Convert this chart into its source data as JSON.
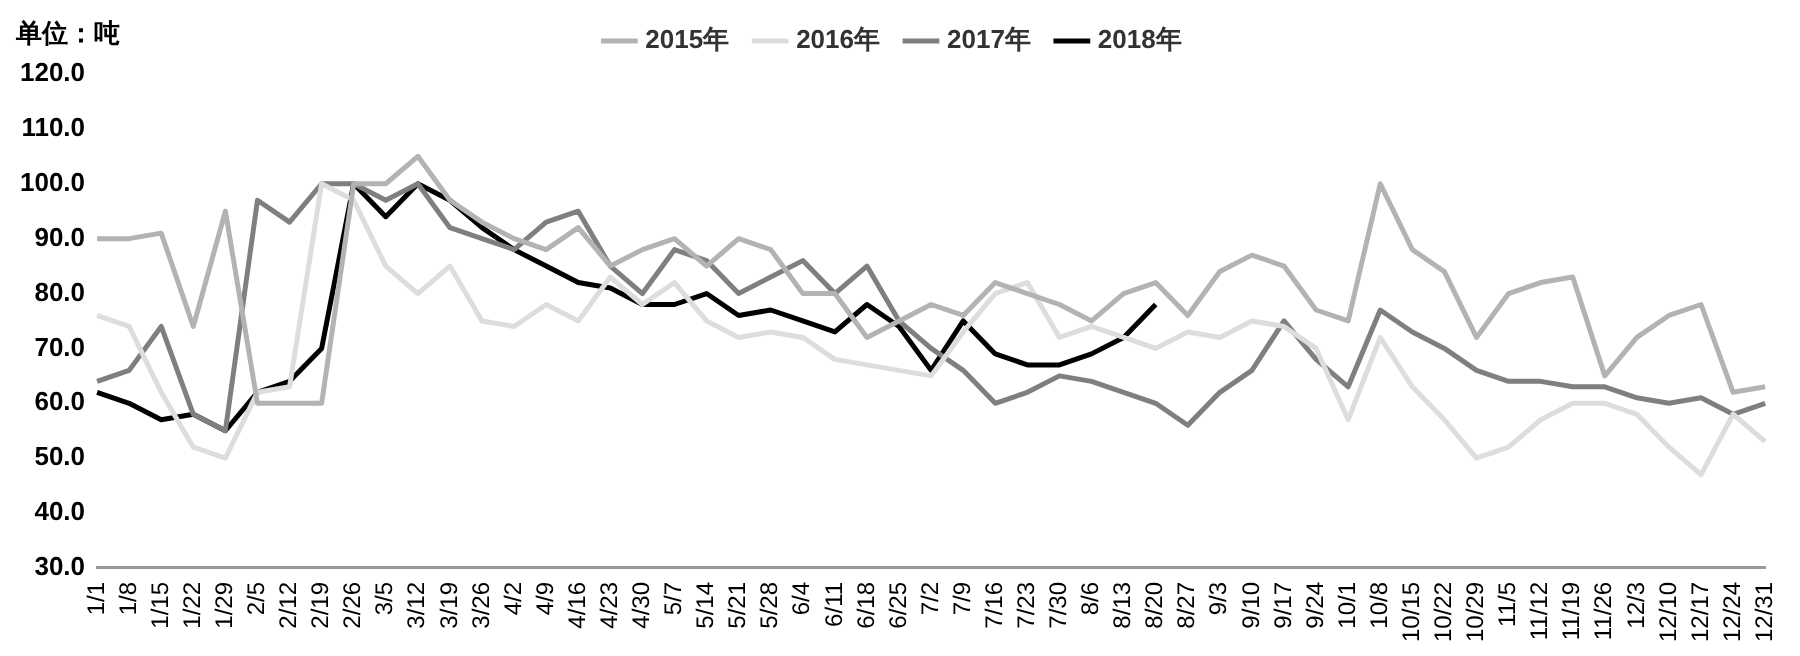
{
  "chart_data": {
    "type": "line",
    "ylabel": "单位：吨",
    "legend": "top",
    "marker": "none",
    "line_style": "solid",
    "grid": false,
    "categories": [
      "1/1",
      "1/8",
      "1/15",
      "1/22",
      "1/29",
      "2/5",
      "2/12",
      "2/19",
      "2/26",
      "3/5",
      "3/12",
      "3/19",
      "3/26",
      "4/2",
      "4/9",
      "4/16",
      "4/23",
      "4/30",
      "5/7",
      "5/14",
      "5/21",
      "5/28",
      "6/4",
      "6/11",
      "6/18",
      "6/25",
      "7/2",
      "7/9",
      "7/16",
      "7/23",
      "7/30",
      "8/6",
      "8/13",
      "8/20",
      "8/27",
      "9/3",
      "9/10",
      "9/17",
      "9/24",
      "10/1",
      "10/8",
      "10/15",
      "10/22",
      "10/29",
      "11/5",
      "11/12",
      "11/19",
      "11/26",
      "12/3",
      "12/10",
      "12/17",
      "12/24",
      "12/31"
    ],
    "ylim": [
      30,
      120
    ],
    "yticks": [
      {
        "value": 30,
        "label": "30.0"
      },
      {
        "value": 40,
        "label": "40.0"
      },
      {
        "value": 50,
        "label": "50.0"
      },
      {
        "value": 60,
        "label": "60.0"
      },
      {
        "value": 70,
        "label": "70.0"
      },
      {
        "value": 80,
        "label": "80.0"
      },
      {
        "value": 90,
        "label": "90.0"
      },
      {
        "value": 100,
        "label": "100.0"
      },
      {
        "value": 110,
        "label": "110.0"
      },
      {
        "value": 120,
        "label": "120.0"
      }
    ],
    "series": [
      {
        "name": "2015年",
        "color": "#b3b3b3",
        "values": [
          90,
          90,
          91,
          74,
          95,
          60,
          60,
          60,
          100,
          100,
          105,
          97,
          93,
          90,
          88,
          92,
          85,
          88,
          90,
          85,
          90,
          88,
          80,
          80,
          72,
          75,
          78,
          76,
          82,
          80,
          78,
          75,
          80,
          82,
          76,
          84,
          87,
          85,
          77,
          75,
          100,
          88,
          84,
          72,
          80,
          82,
          83,
          65,
          72,
          76,
          78,
          62,
          63
        ]
      },
      {
        "name": "2016年",
        "color": "#dddddd",
        "values": [
          76,
          74,
          62,
          52,
          50,
          62,
          63,
          100,
          97,
          85,
          80,
          85,
          75,
          74,
          78,
          75,
          83,
          78,
          82,
          75,
          72,
          73,
          72,
          68,
          67,
          66,
          65,
          73,
          80,
          82,
          72,
          74,
          72,
          70,
          73,
          72,
          75,
          74,
          70,
          57,
          72,
          63,
          57,
          50,
          52,
          57,
          60,
          60,
          58,
          52,
          47,
          58,
          53
        ]
      },
      {
        "name": "2017年",
        "color": "#7f7f7f",
        "values": [
          64,
          66,
          74,
          58,
          55,
          97,
          93,
          100,
          100,
          97,
          100,
          92,
          90,
          88,
          93,
          95,
          85,
          80,
          88,
          86,
          80,
          83,
          86,
          80,
          85,
          75,
          70,
          66,
          60,
          62,
          65,
          64,
          62,
          60,
          56,
          62,
          66,
          75,
          68,
          63,
          77,
          73,
          70,
          66,
          64,
          64,
          63,
          63,
          61,
          60,
          61,
          58,
          60
        ]
      },
      {
        "name": "2018年",
        "color": "#000000",
        "values": [
          62,
          60,
          57,
          58,
          55,
          62,
          64,
          70,
          100,
          94,
          100,
          97,
          92,
          88,
          85,
          82,
          81,
          78,
          78,
          80,
          76,
          77,
          75,
          73,
          78,
          74,
          66,
          75,
          69,
          67,
          67,
          69,
          72,
          78,
          null,
          null,
          null,
          null,
          null,
          null,
          null,
          null,
          null,
          null,
          null,
          null,
          null,
          null,
          null,
          null,
          null,
          null,
          null
        ]
      }
    ]
  }
}
